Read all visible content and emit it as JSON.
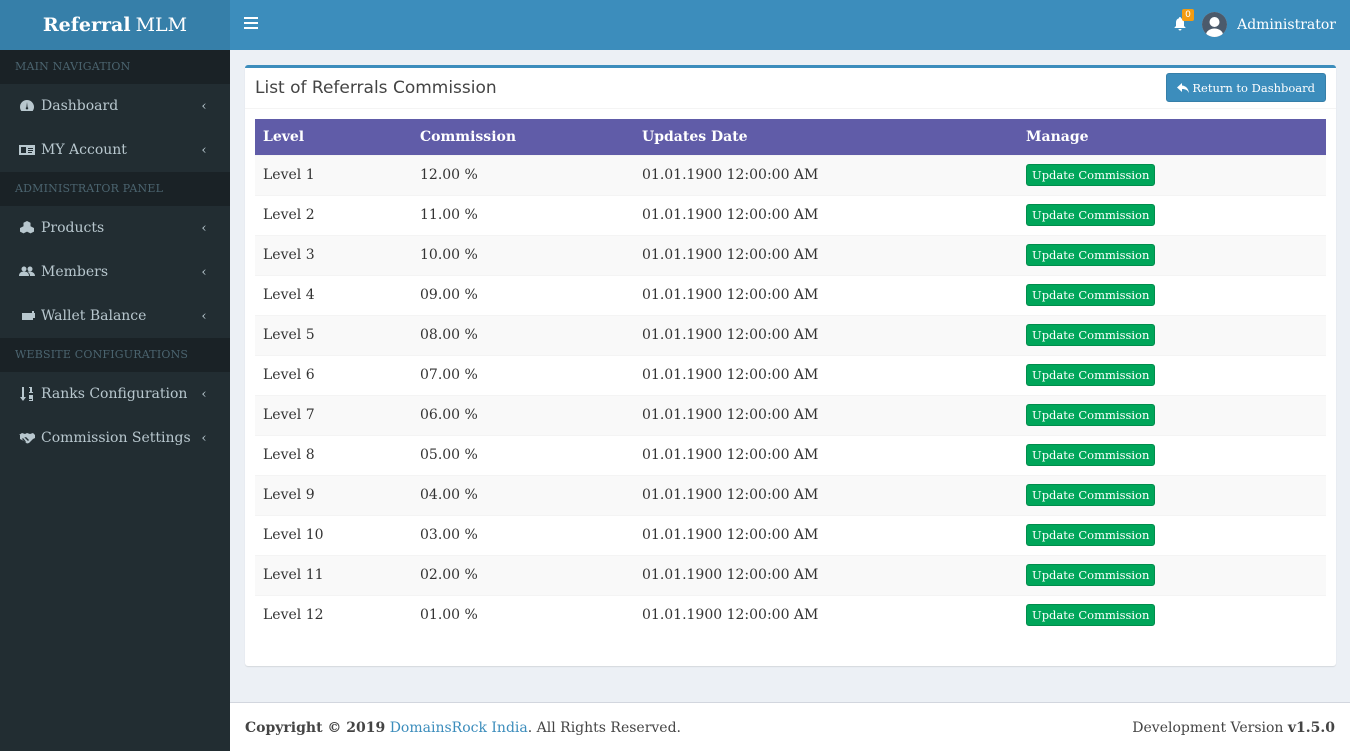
{
  "brand": {
    "bold": "Referral",
    "rest": "MLM"
  },
  "colors": {
    "sidebar": "#222d32",
    "header": "#3c8dbc",
    "table_head": "#605ca8",
    "update_btn": "#00a65a",
    "badge": "#f39c12"
  },
  "sidebar": {
    "sections": [
      {
        "header": "MAIN NAVIGATION",
        "items": [
          {
            "label": "Dashboard",
            "icon": "dashboard-icon"
          },
          {
            "label": "MY Account",
            "icon": "id-card-icon"
          }
        ]
      },
      {
        "header": "ADMINISTRATOR PANEL",
        "items": [
          {
            "label": "Products",
            "icon": "cubes-icon"
          },
          {
            "label": "Members",
            "icon": "users-icon"
          },
          {
            "label": "Wallet Balance",
            "icon": "wallet-icon"
          }
        ]
      },
      {
        "header": "WEBSITE CONFIGURATIONS",
        "items": [
          {
            "label": "Ranks Configuration",
            "icon": "sort-numeric-icon"
          },
          {
            "label": "Commission Settings",
            "icon": "handshake-icon"
          }
        ]
      }
    ]
  },
  "header": {
    "notifications": "0",
    "user_name": "Administrator"
  },
  "main": {
    "title": "List of Referrals Commission",
    "return_label": "Return to Dashboard",
    "columns": [
      "Level",
      "Commission",
      "Updates Date",
      "Manage"
    ],
    "update_label": "Update Commission",
    "rows": [
      {
        "level": "Level 1",
        "commission": "12.00 %",
        "date": "01.01.1900 12:00:00 AM"
      },
      {
        "level": "Level 2",
        "commission": "11.00 %",
        "date": "01.01.1900 12:00:00 AM"
      },
      {
        "level": "Level 3",
        "commission": "10.00 %",
        "date": "01.01.1900 12:00:00 AM"
      },
      {
        "level": "Level 4",
        "commission": "09.00 %",
        "date": "01.01.1900 12:00:00 AM"
      },
      {
        "level": "Level 5",
        "commission": "08.00 %",
        "date": "01.01.1900 12:00:00 AM"
      },
      {
        "level": "Level 6",
        "commission": "07.00 %",
        "date": "01.01.1900 12:00:00 AM"
      },
      {
        "level": "Level 7",
        "commission": "06.00 %",
        "date": "01.01.1900 12:00:00 AM"
      },
      {
        "level": "Level 8",
        "commission": "05.00 %",
        "date": "01.01.1900 12:00:00 AM"
      },
      {
        "level": "Level 9",
        "commission": "04.00 %",
        "date": "01.01.1900 12:00:00 AM"
      },
      {
        "level": "Level 10",
        "commission": "03.00 %",
        "date": "01.01.1900 12:00:00 AM"
      },
      {
        "level": "Level 11",
        "commission": "02.00 %",
        "date": "01.01.1900 12:00:00 AM"
      },
      {
        "level": "Level 12",
        "commission": "01.00 %",
        "date": "01.01.1900 12:00:00 AM"
      }
    ]
  },
  "footer": {
    "copyright_prefix": "Copyright © 2019",
    "company": "DomainsRock India",
    "suffix": ". All Rights Reserved.",
    "version_label": "Development Version",
    "version": "v1.5.0"
  }
}
